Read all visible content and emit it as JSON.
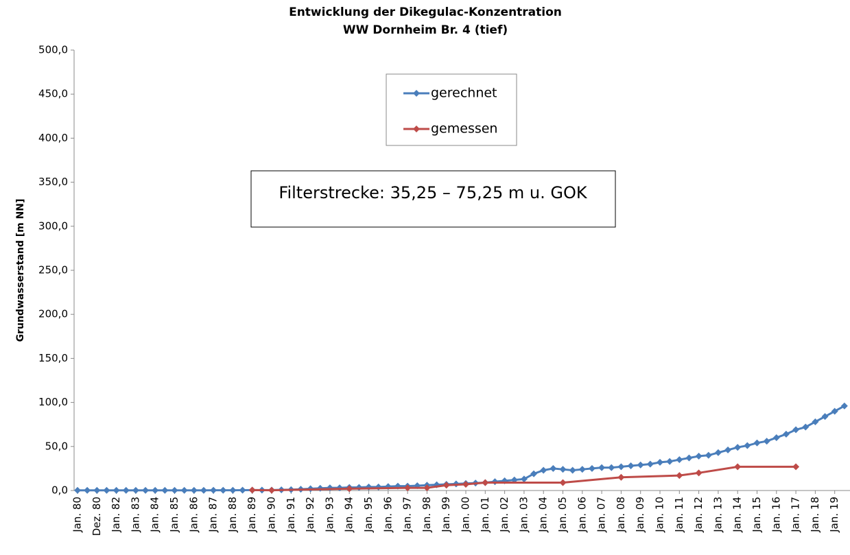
{
  "chart_data": {
    "type": "line",
    "title": [
      "Entwicklung der Dikegulac-Konzentration",
      "WW Dornheim Br. 4 (tief)"
    ],
    "y_label": "Grundwasserstand [m NN]",
    "annotation": "Filterstrecke: 35,25 – 75,25 m u. GOK",
    "categories": [
      "Jan. 80",
      null,
      "Dez. 80",
      null,
      "Jan. 82",
      null,
      "Jan. 83",
      null,
      "Jan. 84",
      null,
      "Jan. 85",
      null,
      "Jan. 86",
      null,
      "Jan. 87",
      null,
      "Jan. 88",
      null,
      "Jan. 89",
      null,
      "Jan. 90",
      null,
      "Jan. 91",
      null,
      "Jan. 92",
      null,
      "Jan. 93",
      null,
      "Jan. 94",
      null,
      "Jan. 95",
      null,
      "Jan. 96",
      null,
      "Jan. 97",
      null,
      "Jan. 98",
      null,
      "Jan. 99",
      null,
      "Jan. 00",
      null,
      "Jan. 01",
      null,
      "Jan. 02",
      null,
      "Jan. 03",
      null,
      "Jan. 04",
      null,
      "Jan. 05",
      null,
      "Jan. 06",
      null,
      "Jan. 07",
      null,
      "Jan. 08",
      null,
      "Jan. 09",
      null,
      "Jan. 10",
      null,
      "Jan. 11",
      null,
      "Jan. 12",
      null,
      "Jan. 13",
      null,
      "Jan. 14",
      null,
      "Jan. 15",
      null,
      "Jan. 16",
      null,
      "Jan. 17",
      null,
      "Jan. 18",
      null,
      "Jan. 19",
      null
    ],
    "series": [
      {
        "name": "gerechnet",
        "color": "#4a7ebb",
        "values": [
          0.2,
          0.2,
          0.2,
          0.2,
          0.2,
          0.2,
          0.2,
          0.2,
          0.2,
          0.2,
          0.2,
          0.2,
          0.2,
          0.2,
          0.3,
          0.3,
          0.3,
          0.4,
          0.5,
          0.5,
          0.5,
          0.8,
          1,
          1.5,
          2,
          2.5,
          3,
          3,
          3.5,
          3.5,
          4,
          4,
          4.5,
          5,
          5,
          5.5,
          6,
          6.5,
          7,
          7.5,
          8,
          8.5,
          9,
          10,
          11,
          12,
          13,
          19,
          23,
          25,
          24,
          23,
          24,
          25,
          26,
          26,
          27,
          28,
          29,
          30,
          32,
          33,
          35,
          37,
          39,
          40,
          43,
          46,
          49,
          51,
          54,
          56,
          60,
          64,
          69,
          72,
          78,
          84,
          90,
          96
        ]
      },
      {
        "name": "gemessen",
        "color": "#be4b48",
        "x": [
          "Jan. 89",
          "Jan. 90",
          "Jan. 94",
          "Jan. 97",
          "Jan. 98",
          "Jan. 99",
          "Jan. 00",
          "Jan. 01",
          "Jan. 05",
          "Jan. 08",
          "Jan. 11",
          "Jan. 12",
          "Jan. 14",
          "Jan. 17"
        ],
        "values": [
          0.5,
          0.3,
          2,
          3,
          3,
          6,
          7,
          9,
          9,
          15,
          17,
          20,
          27,
          27
        ]
      }
    ],
    "ylim": [
      0,
      500
    ],
    "yticks": [
      {
        "value": 0,
        "label": "0,0"
      },
      {
        "value": 50,
        "label": "50,0"
      },
      {
        "value": 100,
        "label": "100,0"
      },
      {
        "value": 150,
        "label": "150,0"
      },
      {
        "value": 200,
        "label": "200,0"
      },
      {
        "value": 250,
        "label": "250,0"
      },
      {
        "value": 300,
        "label": "300,0"
      },
      {
        "value": 350,
        "label": "350,0"
      },
      {
        "value": 400,
        "label": "400,0"
      },
      {
        "value": 450,
        "label": "450,0"
      },
      {
        "value": 500,
        "label": "500,0"
      }
    ],
    "grid": false
  }
}
